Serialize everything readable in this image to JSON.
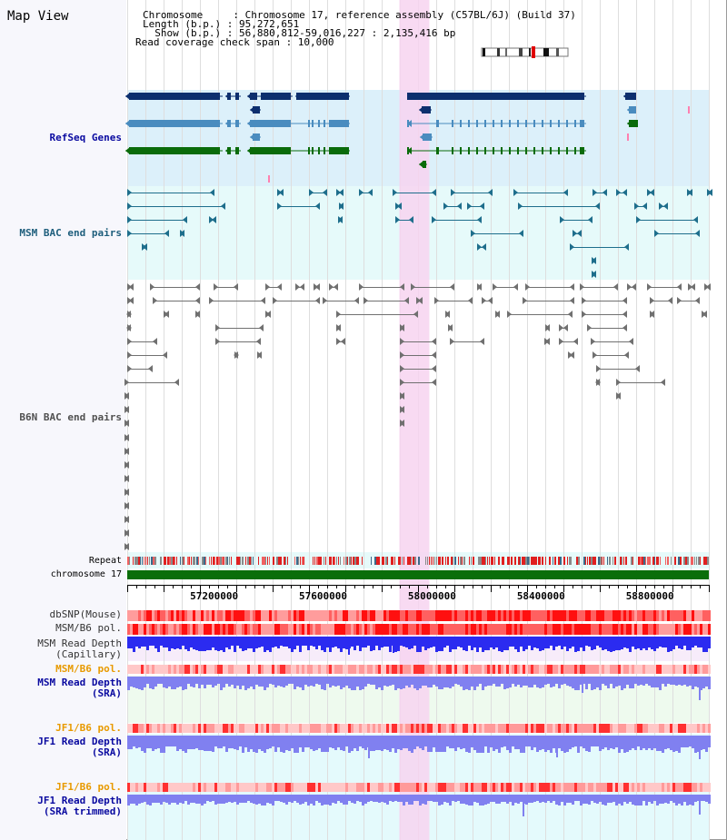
{
  "panel_title": "Map View",
  "header": {
    "line1": "Chromosome     : Chromosome 17, reference assembly (C57BL/6J) (Build 37)",
    "line2": "Length (b.p.) : 95,272,651",
    "line3": "  Show (b.p.) : 56,880,812-59,016,227 : 2,135,416 bp",
    "line4": "Read coverage check span : 10,000"
  },
  "view_range": {
    "start": 56880812,
    "end": 59016227
  },
  "highlight_range": {
    "start": 57880000,
    "end": 57990000
  },
  "axis_ticks": [
    "57200000",
    "57600000",
    "58000000",
    "58400000",
    "58800000"
  ],
  "track_labels": {
    "refseq": "RefSeq Genes",
    "msm_bac": "MSM BAC end pairs",
    "b6n_bac": "B6N BAC end pairs",
    "repeat": "Repeat",
    "chromosome": "chromosome 17",
    "dbsnp": "dbSNP(Mouse)",
    "msm_b6_pol": "MSM/B6 pol.",
    "msm_depth_cap_1": "MSM Read Depth",
    "msm_depth_cap_2": "(Capillary)",
    "msm_b6_pol_2": "MSM/B6 pol.",
    "msm_depth_sra_1": "MSM Read Depth",
    "msm_depth_sra_2": "(SRA)",
    "jf1_pol_1": "JF1/B6 pol.",
    "jf1_depth_sra_1": "JF1 Read Depth",
    "jf1_depth_sra_2": "(SRA)",
    "jf1_pol_2": "JF1/B6 pol.",
    "jf1_depth_trim_1": "JF1 Read Depth",
    "jf1_depth_trim_2": "(SRA trimmed)"
  },
  "colors": {
    "refseq_dark": "#0d2f6e",
    "refseq_mid": "#4a8cbf",
    "refseq_green": "#0a6b0a",
    "refseq_bg": "#dcf0fa",
    "msm_bac": "#1e6e8c",
    "b6n_bac": "#707070",
    "chromosome_bar": "#0a6e0a",
    "depth_blue": "#2b2bf0",
    "depth_light": "#8080f0",
    "highlight": "#f7d4f0",
    "label_blue": "#0a0aa0",
    "label_teal": "#1e5e7c",
    "label_gray": "#505050",
    "label_orange": "#e89a00"
  }
}
